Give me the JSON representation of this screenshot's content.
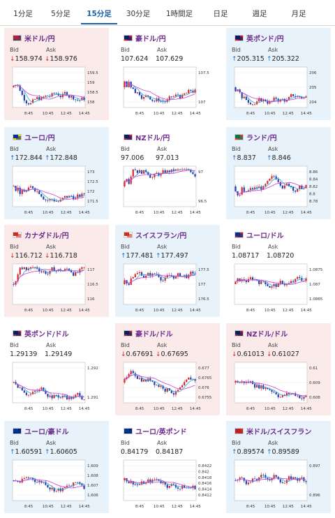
{
  "tabs": [
    "1分足",
    "5分足",
    "15分足",
    "30分足",
    "1時間足",
    "日足",
    "週足",
    "月足"
  ],
  "active_tab": 2,
  "labels": {
    "bid": "Bid",
    "ask": "Ask"
  },
  "time_ticks": [
    "8:45",
    "10:45",
    "12:45",
    "14:45"
  ],
  "cards": [
    {
      "title": "米ドル/円",
      "bg": "pink",
      "flag": [
        "#b22234",
        "#3c3b6e"
      ],
      "bid": "158.974",
      "ask": "158.976",
      "dir": "down",
      "yticks": [
        "159.5",
        "159",
        "158.5",
        "158"
      ]
    },
    {
      "title": "豪ドル/円",
      "bg": "white",
      "flag": [
        "#012169",
        "#c8102e"
      ],
      "bid": "107.624",
      "ask": "107.629",
      "dir": "none",
      "yticks": [
        "107.5",
        "107"
      ]
    },
    {
      "title": "英ポンド/円",
      "bg": "blue",
      "flag": [
        "#012169",
        "#c8102e"
      ],
      "bid": "205.315",
      "ask": "205.322",
      "dir": "up",
      "yticks": [
        "206",
        "205",
        "204"
      ]
    },
    {
      "title": "ユーロ/円",
      "bg": "blue",
      "flag": [
        "#003399",
        "#ffcc00"
      ],
      "bid": "172.844",
      "ask": "172.848",
      "dir": "up",
      "yticks": [
        "173",
        "172.5",
        "172",
        "171.5"
      ]
    },
    {
      "title": "NZドル/円",
      "bg": "white",
      "flag": [
        "#012169",
        "#c8102e"
      ],
      "bid": "97.006",
      "ask": "97.013",
      "dir": "none",
      "yticks": [
        "97",
        "96.5"
      ]
    },
    {
      "title": "ランド/円",
      "bg": "blue",
      "flag": [
        "#007a4d",
        "#de3831"
      ],
      "bid": "8.837",
      "ask": "8.846",
      "dir": "up",
      "yticks": [
        "8.86",
        "8.84",
        "8.82",
        "8.8",
        "8.78"
      ]
    },
    {
      "title": "カナダドル/円",
      "bg": "pink",
      "flag": [
        "#d52b1e",
        "#ffffff"
      ],
      "bid": "116.712",
      "ask": "116.718",
      "dir": "down",
      "yticks": [
        "117",
        "116.5",
        "116"
      ]
    },
    {
      "title": "スイスフラン/円",
      "bg": "blue",
      "flag": [
        "#d52b1e",
        "#ffffff"
      ],
      "bid": "177.481",
      "ask": "177.497",
      "dir": "up",
      "yticks": [
        "177.5",
        "177",
        "176.5"
      ]
    },
    {
      "title": "ユーロ/ドル",
      "bg": "white",
      "flag": [
        "#003399",
        "#b22234"
      ],
      "bid": "1.08717",
      "ask": "1.08720",
      "dir": "none",
      "yticks": [
        "1.0875",
        "1.087",
        "1.0865"
      ]
    },
    {
      "title": "英ポンド/ドル",
      "bg": "white",
      "flag": [
        "#012169",
        "#b22234"
      ],
      "bid": "1.29139",
      "ask": "1.29149",
      "dir": "none",
      "yticks": [
        "1.292",
        "1.291"
      ]
    },
    {
      "title": "豪ドル/ドル",
      "bg": "pink",
      "flag": [
        "#012169",
        "#b22234"
      ],
      "bid": "0.67691",
      "ask": "0.67695",
      "dir": "down",
      "yticks": [
        "0.677",
        "0.6765",
        "0.676",
        "0.6755"
      ]
    },
    {
      "title": "NZドル/ドル",
      "bg": "pink",
      "flag": [
        "#012169",
        "#b22234"
      ],
      "bid": "0.61013",
      "ask": "0.61027",
      "dir": "down",
      "yticks": [
        "0.61",
        "0.609",
        "0.608"
      ]
    },
    {
      "title": "ユーロ/豪ドル",
      "bg": "blue",
      "flag": [
        "#003399",
        "#012169"
      ],
      "bid": "1.60591",
      "ask": "1.60605",
      "dir": "up",
      "yticks": [
        "1.609",
        "1.608",
        "1.607",
        "1.606"
      ]
    },
    {
      "title": "ユーロ/英ポンド",
      "bg": "white",
      "flag": [
        "#003399",
        "#012169"
      ],
      "bid": "0.84179",
      "ask": "0.84187",
      "dir": "none",
      "yticks": [
        "0.8422",
        "0.842",
        "0.8418",
        "0.8416",
        "0.8414",
        "0.8412"
      ]
    },
    {
      "title": "米ドル/スイスフラン",
      "bg": "blue",
      "flag": [
        "#b22234",
        "#d52b1e"
      ],
      "bid": "0.89574",
      "ask": "0.89589",
      "dir": "up",
      "yticks": [
        "0.897",
        "0.896"
      ]
    }
  ]
}
